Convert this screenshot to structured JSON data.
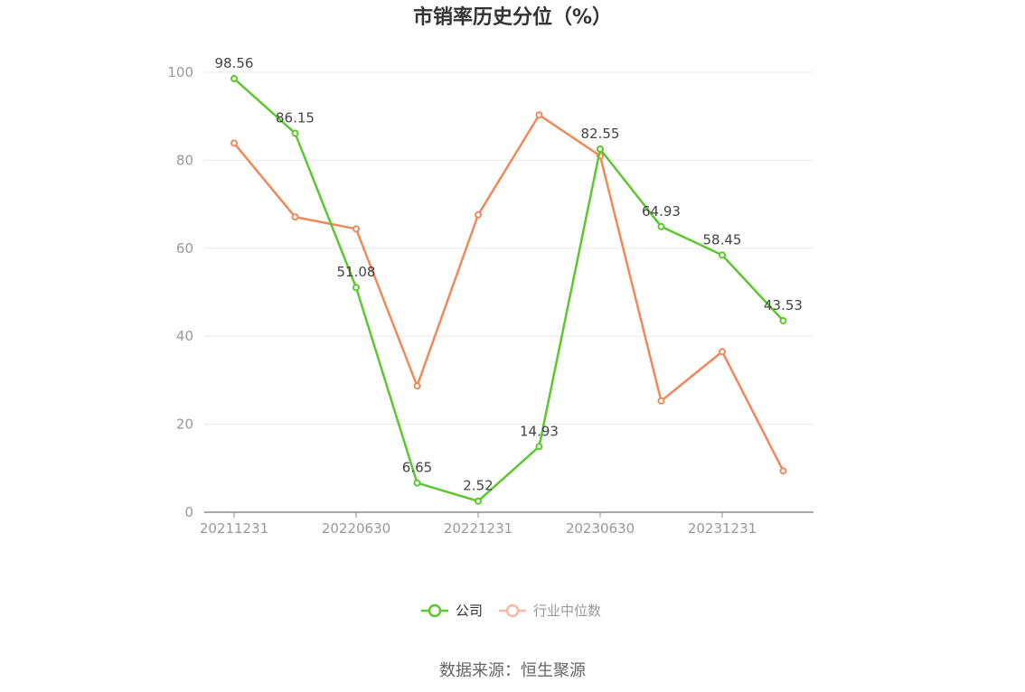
{
  "chart_data": {
    "type": "line",
    "title": "市销率历史分位（%）",
    "x": [
      "20211231",
      "20220331",
      "20220630",
      "20220930",
      "20221231",
      "20230331",
      "20230630",
      "20230930",
      "20231231",
      "20240331"
    ],
    "x_tick_labels": [
      "20211231",
      "20220630",
      "20221231",
      "20230630",
      "20231231"
    ],
    "ylim": [
      0,
      100
    ],
    "y_ticks": [
      0,
      20,
      40,
      60,
      80,
      100
    ],
    "grid": true,
    "legend_position": "bottom-center",
    "series": [
      {
        "name": "公司",
        "color": "#5cc72e",
        "values": [
          98.56,
          86.15,
          51.08,
          6.65,
          2.52,
          14.93,
          82.55,
          64.93,
          58.45,
          43.53
        ],
        "data_labels": [
          "98.56",
          "86.15",
          "51.08",
          "6.65",
          "2.52",
          "14.93",
          "82.55",
          "64.93",
          "58.45",
          "43.53"
        ]
      },
      {
        "name": "行业中位数",
        "color": "#f0895a",
        "values": [
          83.9,
          67.1,
          64.4,
          28.7,
          67.6,
          90.3,
          81.0,
          25.3,
          36.5,
          9.4
        ]
      }
    ]
  },
  "source": "数据来源：恒生聚源"
}
